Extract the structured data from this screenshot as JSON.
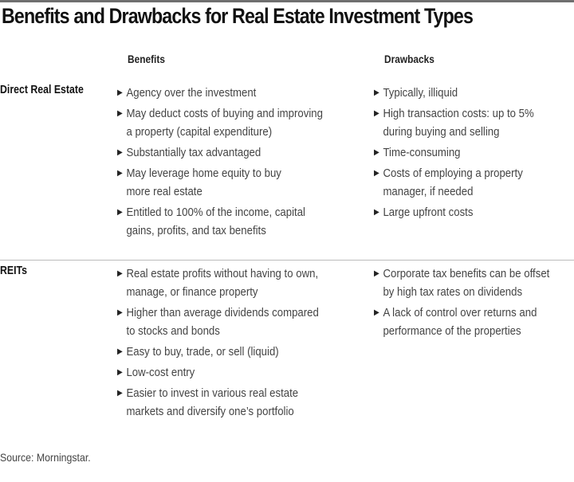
{
  "title": "Benefits and Drawbacks for Real Estate Investment Types",
  "columns": {
    "benefits": "Benefits",
    "drawbacks": "Drawbacks"
  },
  "bullet_icon": "triangle-right",
  "rows": [
    {
      "label": "Direct Real Estate",
      "benefits": [
        "Agency over the investment",
        "May deduct costs of buying and improving\na property (capital expenditure)",
        "Substantially tax advantaged",
        "May leverage home equity to buy\nmore real estate",
        "Entitled to 100% of the income, capital\ngains, profits, and tax benefits"
      ],
      "drawbacks": [
        "Typically, illiquid",
        "High transaction costs: up to 5%\nduring buying and selling",
        "Time-consuming",
        "Costs of employing a property\nmanager, if needed",
        "Large upfront costs"
      ]
    },
    {
      "label": "REITs",
      "benefits": [
        "Real estate profits without having to own,\nmanage, or finance property",
        "Higher than average dividends compared\nto stocks and bonds",
        "Easy to buy, trade, or sell (liquid)",
        "Low-cost entry",
        "Easier to invest in various real estate\nmarkets and diversify one’s portfolio"
      ],
      "drawbacks": [
        "Corporate tax benefits can be offset\nby high tax rates on dividends",
        "A lack of control over returns and\nperformance of the properties"
      ]
    }
  ],
  "source": "Source: Morningstar."
}
